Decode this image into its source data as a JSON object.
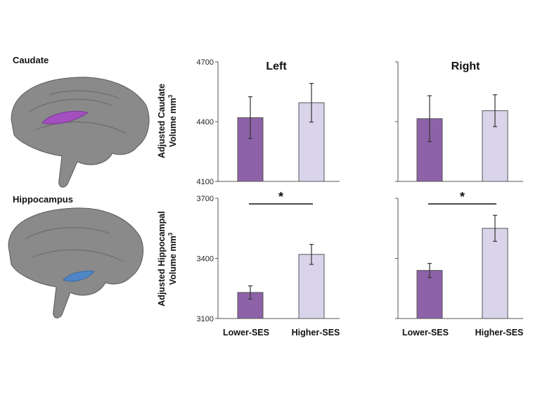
{
  "regions": {
    "caudate": "Caudate",
    "hippocampus": "Hippocampus"
  },
  "panels": {
    "left_title": "Left",
    "right_title": "Right"
  },
  "ylabels": {
    "caudate_line1": "Adjusted Caudate",
    "caudate_line2": "Volume mm",
    "hippo_line1": "Adjusted Hippocampal",
    "hippo_line2": "Volume mm",
    "superscript": "3"
  },
  "significance_marker": "*",
  "colors": {
    "lower": "#8e62a8",
    "higher": "#d9d4ea",
    "caudate_highlight": "#a34fbf",
    "hippocampus_highlight": "#4f86c6",
    "brain": "#8a8a8a"
  },
  "chart_data": [
    {
      "type": "bar",
      "title": "Left",
      "ylabel": "Adjusted Caudate Volume mm3",
      "categories": [
        "Lower-SES",
        "Higher-SES"
      ],
      "values": [
        4420,
        4495
      ],
      "errors": [
        105,
        97
      ],
      "ylim": [
        4100,
        4700
      ],
      "yticks": [
        "4100",
        "4400",
        "4700"
      ],
      "significant": false
    },
    {
      "type": "bar",
      "title": "Right",
      "ylabel": "Adjusted Caudate Volume mm3",
      "categories": [
        "Lower-SES",
        "Higher-SES"
      ],
      "values": [
        4415,
        4455
      ],
      "errors": [
        115,
        80
      ],
      "ylim": [
        4100,
        4700
      ],
      "yticks": [
        "4100",
        "4400",
        "4700"
      ],
      "significant": false
    },
    {
      "type": "bar",
      "title": "",
      "ylabel": "Adjusted Hippocampal Volume mm3",
      "categories": [
        "Lower-SES",
        "Higher-SES"
      ],
      "values": [
        3230,
        3420
      ],
      "errors": [
        33,
        50
      ],
      "ylim": [
        3100,
        3700
      ],
      "yticks": [
        "3100",
        "3400",
        "3700"
      ],
      "significant": true
    },
    {
      "type": "bar",
      "title": "",
      "ylabel": "Adjusted Hippocampal Volume mm3",
      "categories": [
        "Lower-SES",
        "Higher-SES"
      ],
      "values": [
        3340,
        3550
      ],
      "errors": [
        35,
        65
      ],
      "ylim": [
        3100,
        3700
      ],
      "yticks": [
        "3100",
        "3400",
        "3700"
      ],
      "significant": true
    }
  ]
}
